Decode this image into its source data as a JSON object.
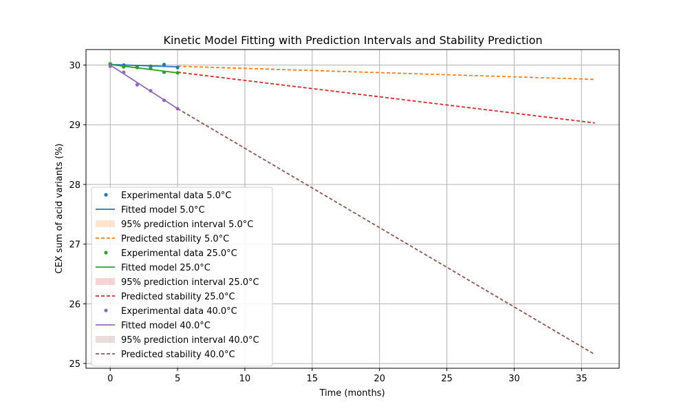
{
  "chart_data": {
    "type": "line",
    "title": "Kinetic Model Fitting with Prediction Intervals and Stability Prediction",
    "xlabel": "Time (months)",
    "ylabel": "CEX sum of acid variants (%)",
    "xlim": [
      -1.8,
      37.8
    ],
    "ylim": [
      24.92,
      30.26
    ],
    "x_ticks": [
      0,
      5,
      10,
      15,
      20,
      25,
      30,
      35
    ],
    "y_ticks": [
      25,
      26,
      27,
      28,
      29,
      30
    ],
    "grid": true,
    "legend_position": "lower-left",
    "series": [
      {
        "name": "Experimental data 5.0°C",
        "kind": "scatter",
        "color": "#1f77b4",
        "x": [
          0,
          1,
          2,
          3,
          4,
          5
        ],
        "y": [
          30.02,
          30.0,
          29.97,
          29.98,
          30.01,
          29.96
        ]
      },
      {
        "name": "Fitted model 5.0°C",
        "kind": "line",
        "color": "#1f77b4",
        "x": [
          0,
          5
        ],
        "y": [
          30.01,
          29.97
        ]
      },
      {
        "name": "95% prediction interval 5.0°C",
        "kind": "band",
        "color": "#ff7f0e",
        "x": [
          0,
          5
        ],
        "y_low": [
          30.0,
          29.96
        ],
        "y_high": [
          30.02,
          29.98
        ]
      },
      {
        "name": "Predicted stability 5.0°C",
        "kind": "dashed",
        "color": "#ff7f0e",
        "x": [
          5,
          36
        ],
        "y": [
          29.98,
          29.76
        ]
      },
      {
        "name": "Experimental data 25.0°C",
        "kind": "scatter",
        "color": "#2ca02c",
        "x": [
          0,
          1,
          2,
          3,
          4,
          5
        ],
        "y": [
          30.02,
          29.97,
          29.96,
          29.95,
          29.88,
          29.87
        ]
      },
      {
        "name": "Fitted model 25.0°C",
        "kind": "line",
        "color": "#2ca02c",
        "x": [
          0,
          5
        ],
        "y": [
          30.01,
          29.87
        ]
      },
      {
        "name": "95% prediction interval 25.0°C",
        "kind": "band",
        "color": "#d62728",
        "x": [
          0,
          5
        ],
        "y_low": [
          30.0,
          29.86
        ],
        "y_high": [
          30.02,
          29.88
        ]
      },
      {
        "name": "Predicted stability 25.0°C",
        "kind": "dashed",
        "color": "#d62728",
        "x": [
          5,
          36
        ],
        "y": [
          29.88,
          29.03
        ]
      },
      {
        "name": "Experimental data 40.0°C",
        "kind": "scatter",
        "color": "#9467bd",
        "x": [
          0,
          1,
          2,
          3,
          4,
          5
        ],
        "y": [
          29.98,
          29.88,
          29.67,
          29.57,
          29.41,
          29.27
        ]
      },
      {
        "name": "Fitted model 40.0°C",
        "kind": "line",
        "color": "#9467bd",
        "x": [
          0,
          5
        ],
        "y": [
          30.0,
          29.27
        ]
      },
      {
        "name": "95% prediction interval 40.0°C",
        "kind": "band",
        "color": "#8c564b",
        "x": [
          0,
          5
        ],
        "y_low": [
          29.99,
          29.26
        ],
        "y_high": [
          30.01,
          29.28
        ]
      },
      {
        "name": "Predicted stability 40.0°C",
        "kind": "dashed",
        "color": "#8c564b",
        "x": [
          5,
          36
        ],
        "y": [
          29.27,
          25.15
        ]
      }
    ]
  }
}
